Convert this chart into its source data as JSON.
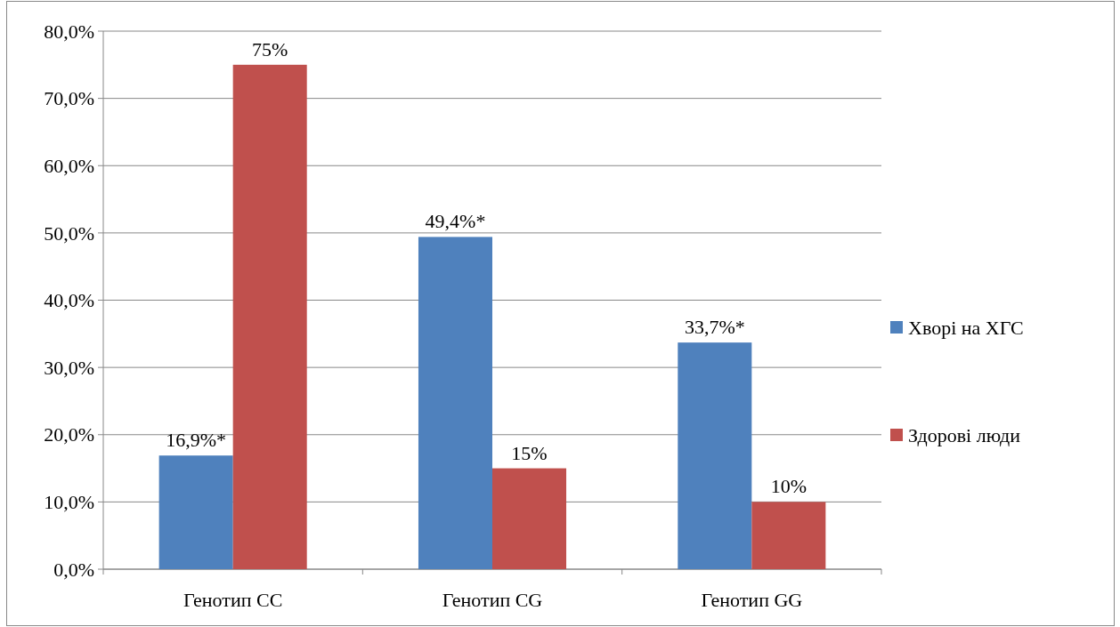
{
  "chart_data": {
    "type": "bar",
    "categories": [
      "Генотип CC",
      "Генотип CG",
      "Генотип GG"
    ],
    "series": [
      {
        "name": "Хворі на ХГС",
        "color": "#4f81bd",
        "values": [
          16.9,
          49.4,
          33.7
        ],
        "value_labels": [
          "16,9%*",
          "49,4%*",
          "33,7%*"
        ]
      },
      {
        "name": "Здорові люди",
        "color": "#c0504d",
        "values": [
          75,
          15,
          10
        ],
        "value_labels": [
          "75%",
          "15%",
          "10%"
        ]
      }
    ],
    "ylim": [
      0,
      80
    ],
    "yticks": [
      {
        "value": 0,
        "label": "0,0%"
      },
      {
        "value": 10,
        "label": "10,0%"
      },
      {
        "value": 20,
        "label": "20,0%"
      },
      {
        "value": 30,
        "label": "30,0%"
      },
      {
        "value": 40,
        "label": "40,0%"
      },
      {
        "value": 50,
        "label": "50,0%"
      },
      {
        "value": 60,
        "label": "60,0%"
      },
      {
        "value": 70,
        "label": "70,0%"
      },
      {
        "value": 80,
        "label": "80,0%"
      }
    ],
    "grid": "y",
    "legend": "right"
  }
}
